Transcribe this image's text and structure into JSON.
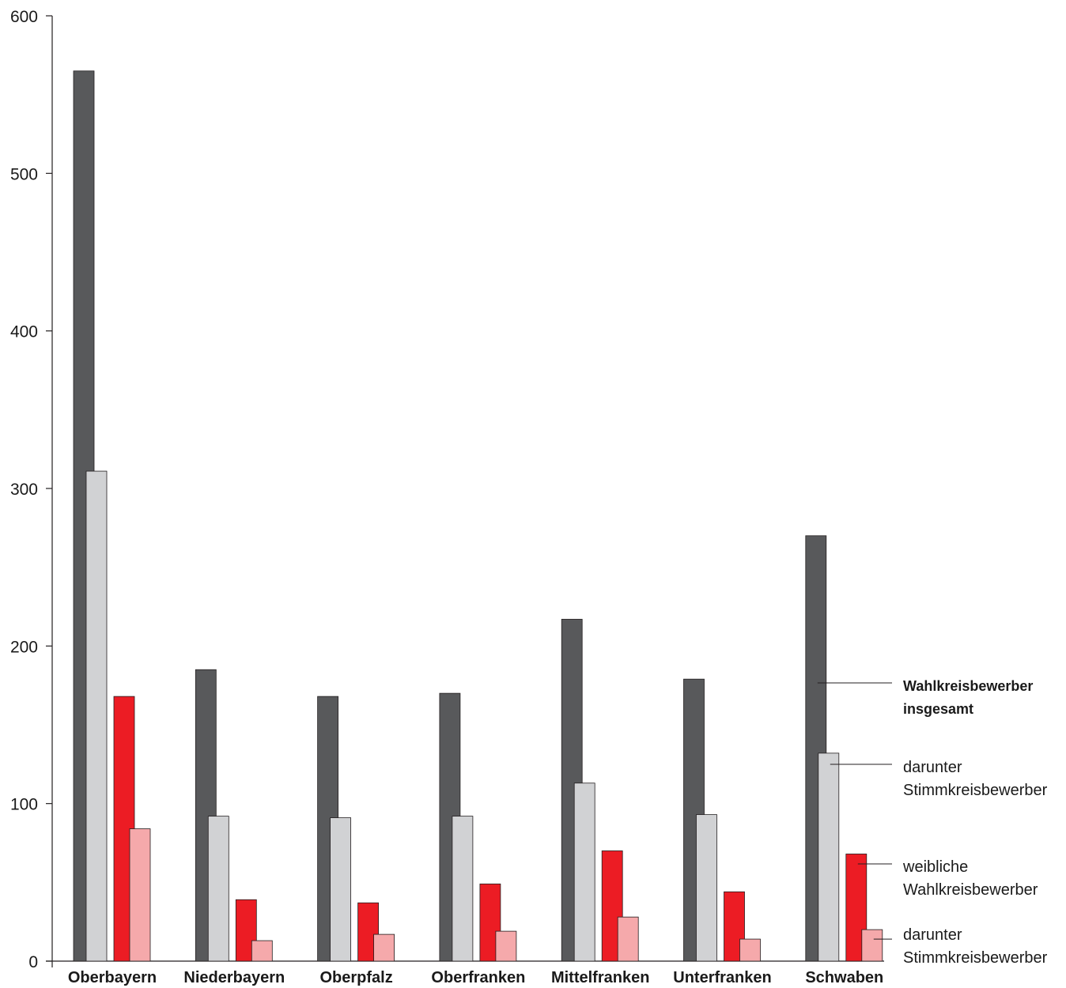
{
  "chart_data": {
    "type": "bar",
    "categories": [
      "Oberbayern",
      "Niederbayern",
      "Oberpfalz",
      "Oberfranken",
      "Mittelfranken",
      "Unterfranken",
      "Schwaben"
    ],
    "series": [
      {
        "name": "Wahlkreisbewerber insgesamt",
        "values": [
          565,
          185,
          168,
          170,
          217,
          179,
          270
        ],
        "color": "#58595b"
      },
      {
        "name": "darunter Stimmkreisbewerber",
        "values": [
          311,
          92,
          91,
          92,
          113,
          93,
          132
        ],
        "color": "#d1d2d4"
      },
      {
        "name": "weibliche Wahlkreisbewerber",
        "values": [
          168,
          39,
          37,
          49,
          70,
          44,
          68
        ],
        "color": "#ec1c24"
      },
      {
        "name": "darunter Stimmkreisbewerber",
        "values": [
          84,
          13,
          17,
          19,
          28,
          14,
          20
        ],
        "color": "#f5a9ab"
      }
    ],
    "ylim": [
      0,
      600
    ],
    "yticks": [
      0,
      100,
      200,
      300,
      400,
      500,
      600
    ],
    "xlabel": "",
    "ylabel": "",
    "grid": false,
    "legend_placement": "right",
    "legend": [
      {
        "lines": [
          "Wahlkreisbewerber",
          "insgesamt"
        ],
        "bold": true
      },
      {
        "lines": [
          "darunter",
          "Stimmkreisbewerber"
        ],
        "bold": false
      },
      {
        "lines": [
          "weibliche",
          "Wahlkreisbewerber"
        ],
        "bold": false
      },
      {
        "lines": [
          "darunter",
          "Stimmkreisbewerber"
        ],
        "bold": false
      }
    ]
  }
}
